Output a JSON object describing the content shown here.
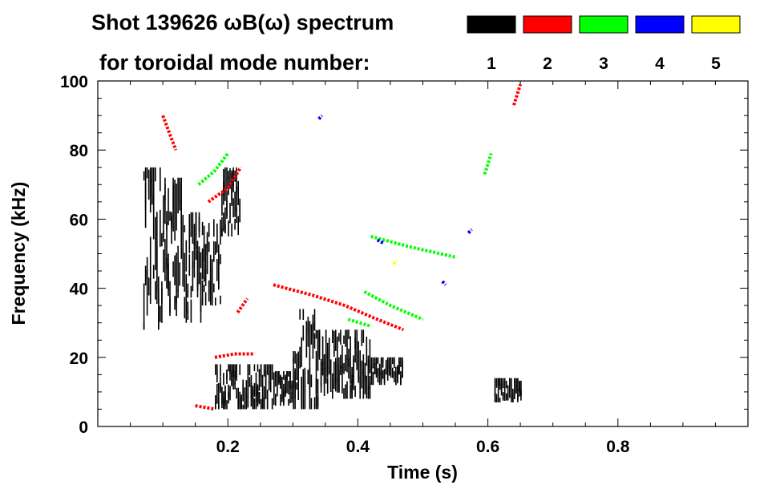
{
  "chart_data": {
    "type": "heatmap",
    "title": "Shot 139626 ωB(ω) spectrum",
    "subtitle": "for toroidal mode number:",
    "xlabel": "Time (s)",
    "ylabel": "Frequency (kHz)",
    "xlim": [
      0.0,
      1.0
    ],
    "ylim": [
      0,
      100
    ],
    "x_ticks": [
      {
        "value": 0.2,
        "label": "0.2"
      },
      {
        "value": 0.4,
        "label": "0.4"
      },
      {
        "value": 0.6,
        "label": "0.6"
      },
      {
        "value": 0.8,
        "label": "0.8"
      }
    ],
    "y_ticks": [
      {
        "value": 0,
        "label": "0"
      },
      {
        "value": 20,
        "label": "20"
      },
      {
        "value": 40,
        "label": "40"
      },
      {
        "value": 60,
        "label": "60"
      },
      {
        "value": 80,
        "label": "80"
      },
      {
        "value": 100,
        "label": "100"
      }
    ],
    "legend": {
      "placement": "top-right",
      "entries": [
        {
          "label": "1",
          "color": "#000000"
        },
        {
          "label": "2",
          "color": "#ff0000"
        },
        {
          "label": "3",
          "color": "#00ff00"
        },
        {
          "label": "4",
          "color": "#0000ff"
        },
        {
          "label": "5",
          "color": "#ffff00"
        }
      ]
    },
    "series": [
      {
        "name": "1",
        "color": "#000000",
        "regions": [
          {
            "t0": 0.07,
            "t1": 0.1,
            "f0": 28,
            "f1": 75
          },
          {
            "t0": 0.1,
            "t1": 0.13,
            "f0": 32,
            "f1": 72
          },
          {
            "t0": 0.13,
            "t1": 0.16,
            "f0": 30,
            "f1": 62
          },
          {
            "t0": 0.16,
            "t1": 0.19,
            "f0": 35,
            "f1": 60
          },
          {
            "t0": 0.19,
            "t1": 0.22,
            "f0": 55,
            "f1": 75
          },
          {
            "t0": 0.18,
            "t1": 0.27,
            "f0": 5,
            "f1": 18
          },
          {
            "t0": 0.27,
            "t1": 0.3,
            "f0": 6,
            "f1": 16
          },
          {
            "t0": 0.3,
            "t1": 0.34,
            "f0": 5,
            "f1": 34
          },
          {
            "t0": 0.34,
            "t1": 0.42,
            "f0": 8,
            "f1": 28
          },
          {
            "t0": 0.42,
            "t1": 0.47,
            "f0": 12,
            "f1": 20
          },
          {
            "t0": 0.61,
            "t1": 0.65,
            "f0": 7,
            "f1": 14
          }
        ]
      },
      {
        "name": "2",
        "color": "#ff0000",
        "tracks": [
          {
            "t": [
              0.27,
              0.33,
              0.38,
              0.43,
              0.47
            ],
            "f": [
              41,
              38,
              35,
              31,
              28
            ]
          },
          {
            "t": [
              0.18,
              0.21,
              0.24
            ],
            "f": [
              20,
              21,
              21
            ]
          },
          {
            "t": [
              0.215,
              0.23
            ],
            "f": [
              33,
              37
            ]
          },
          {
            "t": [
              0.17,
              0.2,
              0.22
            ],
            "f": [
              65,
              69,
              75
            ]
          },
          {
            "t": [
              0.1,
              0.11,
              0.12
            ],
            "f": [
              90,
              85,
              80
            ]
          },
          {
            "t": [
              0.64,
              0.65
            ],
            "f": [
              93,
              99
            ]
          },
          {
            "t": [
              0.15,
              0.18
            ],
            "f": [
              6,
              5
            ]
          }
        ]
      },
      {
        "name": "3",
        "color": "#00ff00",
        "tracks": [
          {
            "t": [
              0.41,
              0.45,
              0.5
            ],
            "f": [
              39,
              35,
              31
            ]
          },
          {
            "t": [
              0.42,
              0.48,
              0.55
            ],
            "f": [
              55,
              52,
              49
            ]
          },
          {
            "t": [
              0.155,
              0.18,
              0.2
            ],
            "f": [
              70,
              74,
              79
            ]
          },
          {
            "t": [
              0.595,
              0.605
            ],
            "f": [
              73,
              79
            ]
          },
          {
            "t": [
              0.385,
              0.42
            ],
            "f": [
              31,
              29
            ]
          }
        ]
      },
      {
        "name": "4",
        "color": "#0000ff",
        "tracks": [
          {
            "t": [
              0.43,
              0.44
            ],
            "f": [
              54,
              53
            ]
          },
          {
            "t": [
              0.53,
              0.535
            ],
            "f": [
              42,
              41
            ]
          },
          {
            "t": [
              0.57,
              0.575
            ],
            "f": [
              56,
              57
            ]
          },
          {
            "t": [
              0.34,
              0.345
            ],
            "f": [
              89,
              90
            ]
          }
        ]
      },
      {
        "name": "5",
        "color": "#ffff00",
        "tracks": [
          {
            "t": [
              0.455,
              0.46
            ],
            "f": [
              47,
              48
            ]
          }
        ]
      }
    ]
  }
}
